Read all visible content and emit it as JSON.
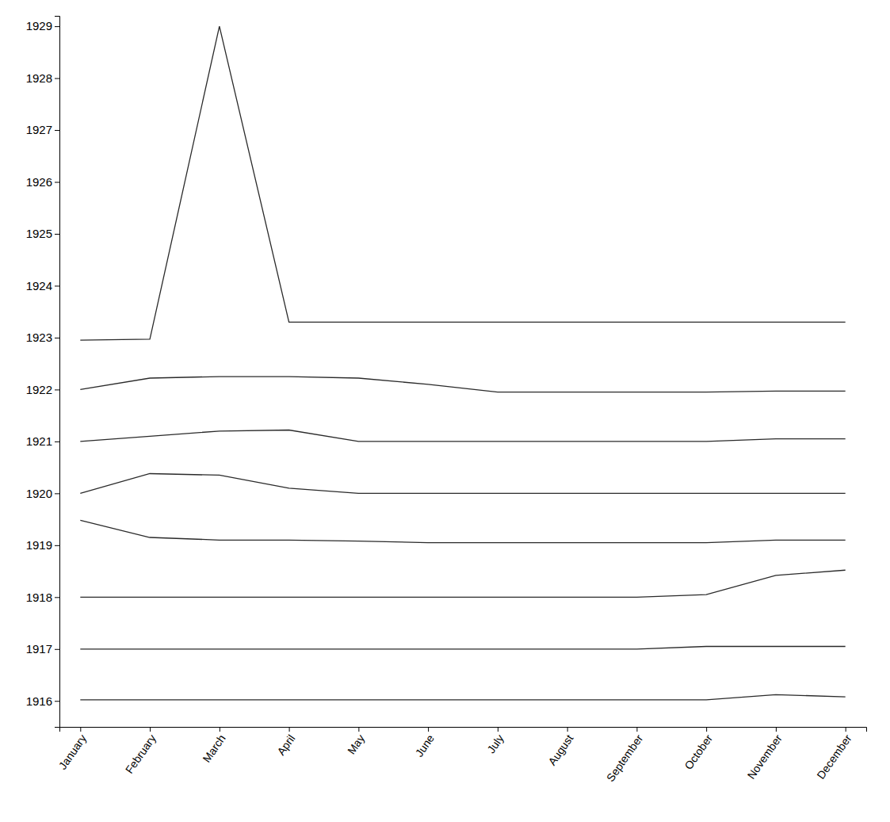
{
  "chart_data": {
    "type": "line",
    "categories": [
      "January",
      "February",
      "March",
      "April",
      "May",
      "June",
      "July",
      "August",
      "September",
      "October",
      "November",
      "December"
    ],
    "color": "#2a2a2a",
    "series": [
      {
        "values": [
          1916.02,
          1916.02,
          1916.02,
          1916.02,
          1916.02,
          1916.02,
          1916.02,
          1916.02,
          1916.02,
          1916.02,
          1916.12,
          1916.08
        ]
      },
      {
        "values": [
          1917.0,
          1917.0,
          1917.0,
          1917.0,
          1917.0,
          1917.0,
          1917.0,
          1917.0,
          1917.0,
          1917.05,
          1917.05,
          1917.05
        ]
      },
      {
        "values": [
          1918.0,
          1918.0,
          1918.0,
          1918.0,
          1918.0,
          1918.0,
          1918.0,
          1918.0,
          1918.0,
          1918.05,
          1918.42,
          1918.52
        ]
      },
      {
        "values": [
          1919.48,
          1919.15,
          1919.1,
          1919.1,
          1919.08,
          1919.05,
          1919.05,
          1919.05,
          1919.05,
          1919.05,
          1919.1,
          1919.1
        ]
      },
      {
        "values": [
          1920.0,
          1920.38,
          1920.35,
          1920.1,
          1920.0,
          1920.0,
          1920.0,
          1920.0,
          1920.0,
          1920.0,
          1920.0,
          1920.0
        ]
      },
      {
        "values": [
          1921.0,
          1921.1,
          1921.2,
          1921.22,
          1921.0,
          1921.0,
          1921.0,
          1921.0,
          1921.0,
          1921.0,
          1921.05,
          1921.05
        ]
      },
      {
        "values": [
          1922.0,
          1922.22,
          1922.25,
          1922.25,
          1922.22,
          1922.1,
          1921.95,
          1921.95,
          1921.95,
          1921.95,
          1921.97,
          1921.97
        ]
      },
      {
        "values": [
          1922.95,
          1922.97,
          1929.0,
          1923.3,
          1923.3,
          1923.3,
          1923.3,
          1923.3,
          1923.3,
          1923.3,
          1923.3,
          1923.3
        ]
      }
    ],
    "ylim": [
      1915.5,
      1929.2
    ],
    "yticks": [
      1916,
      1917,
      1918,
      1919,
      1920,
      1921,
      1922,
      1923,
      1924,
      1925,
      1926,
      1927,
      1928,
      1929
    ],
    "grid": false
  }
}
